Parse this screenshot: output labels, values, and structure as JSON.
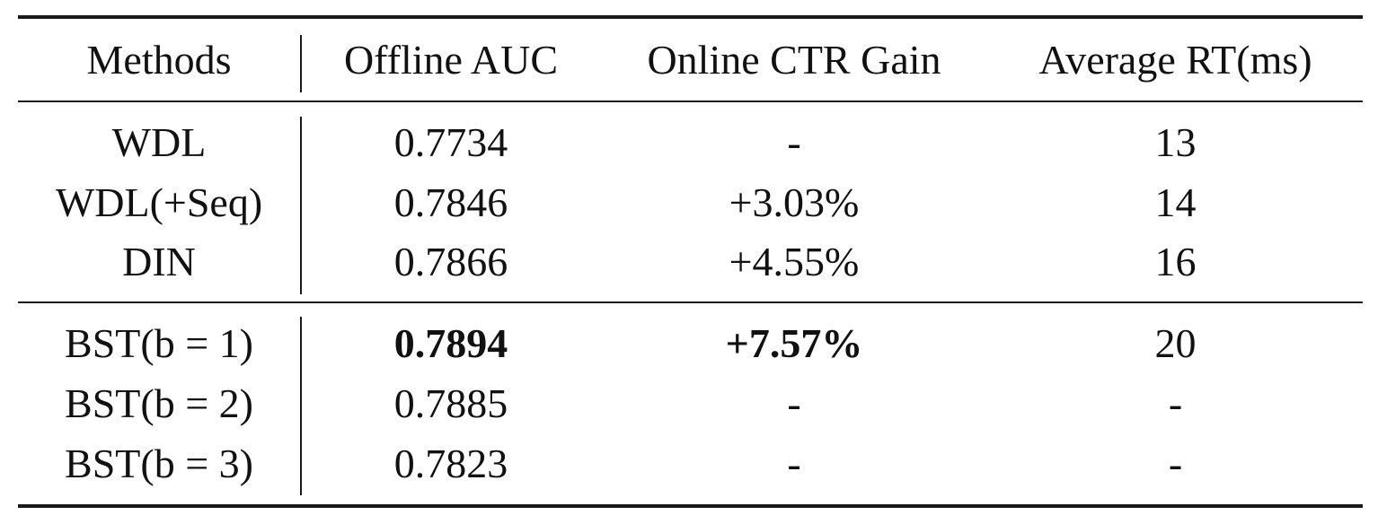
{
  "table": {
    "headers": [
      "Methods",
      "Offline AUC",
      "Online CTR Gain",
      "Average RT(ms)"
    ],
    "rows": [
      [
        "WDL",
        "0.7734",
        "-",
        "13"
      ],
      [
        "WDL(+Seq)",
        "0.7846",
        "+3.03%",
        "14"
      ],
      [
        "DIN",
        "0.7866",
        "+4.55%",
        "16"
      ],
      [
        "BST(b = 1)",
        "0.7894",
        "+7.57%",
        "20"
      ],
      [
        "BST(b = 2)",
        "0.7885",
        "-",
        "-"
      ],
      [
        "BST(b = 3)",
        "0.7823",
        "-",
        "-"
      ]
    ]
  }
}
